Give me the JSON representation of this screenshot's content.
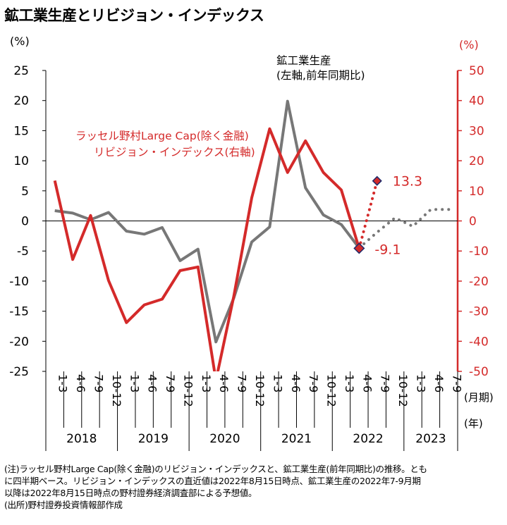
{
  "title": "鉱工業生産とリビジョン・インデックス",
  "chart_data": {
    "type": "line",
    "left_axis_unit": "(%)",
    "right_axis_unit": "(%)",
    "ylim_left": [
      -25,
      25
    ],
    "ylim_right": [
      -50,
      50
    ],
    "yticks_left": [
      "25",
      "20",
      "15",
      "10",
      "5",
      "0",
      "-5",
      "-10",
      "-15",
      "-20",
      "-25"
    ],
    "yticks_right": [
      "50",
      "40",
      "30",
      "20",
      "10",
      "0",
      "-10",
      "-20",
      "-30",
      "-40",
      "-50"
    ],
    "quarters": [
      "1-3",
      "4-6",
      "7-9",
      "10-12",
      "1-3",
      "4-6",
      "7-9",
      "10-12",
      "1-3",
      "4-6",
      "7-9",
      "10-12",
      "1-3",
      "4-6",
      "7-9",
      "10-12",
      "1-3",
      "4-6",
      "7-9",
      "10-12",
      "1-3",
      "4-6",
      "7-9"
    ],
    "years": [
      "2018",
      "2019",
      "2020",
      "2021",
      "2022",
      "2023"
    ],
    "x_unit_quarter": "(月期)",
    "x_unit_year": "(年)",
    "series": [
      {
        "name": "鉱工業生産\n(左軸,前年同期比)",
        "name_lines": [
          "鉱工業生産",
          "(左軸,前年同期比)"
        ],
        "axis": "left",
        "color": "#777777",
        "values": [
          1.7,
          1.3,
          0.2,
          1.4,
          -1.7,
          -2.2,
          -1.1,
          -6.6,
          -4.7,
          -20.1,
          -12.8,
          -3.5,
          -1.0,
          19.9,
          5.5,
          1.0,
          -0.6,
          -4.5,
          null,
          null,
          null,
          null,
          null
        ],
        "forecast": [
          null,
          null,
          null,
          null,
          null,
          null,
          null,
          null,
          null,
          null,
          null,
          null,
          null,
          null,
          null,
          null,
          null,
          -4.5,
          -1.9,
          0.5,
          -0.9,
          1.9,
          1.9
        ]
      },
      {
        "name": "ラッセル野村Large Cap(除く金融)\nリビジョン・インデックス(右軸)",
        "name_lines": [
          "ラッセル野村Large Cap(除く金融)",
          "リビジョン・インデックス(右軸)"
        ],
        "axis": "right",
        "color": "#d42a2a",
        "values": [
          13.4,
          -12.8,
          1.8,
          -19.8,
          -33.8,
          -27.9,
          -26.0,
          -16.5,
          -15.3,
          -53.0,
          -25.0,
          7.7,
          30.6,
          16.1,
          26.6,
          16.1,
          10.3,
          -9.1,
          null,
          null,
          null,
          null,
          null
        ],
        "latest": 13.3
      }
    ],
    "annotations": [
      {
        "text": "13.3",
        "color": "#d42a2a"
      },
      {
        "text": "-9.1",
        "color": "#d42a2a"
      }
    ]
  },
  "notes": [
    "(注)ラッセル野村Large Cap(除く金融)のリビジョン・インデックスと、鉱工業生産(前年同期比)の推移。とも",
    "に四半期ベース。リビジョン・インデックスの直近値は2022年8月15日時点、鉱工業生産の2022年7-9月期",
    "以降は2022年8月15日時点の野村證券経済調査部による予想値。",
    "(出所)野村證券投資情報部作成"
  ]
}
